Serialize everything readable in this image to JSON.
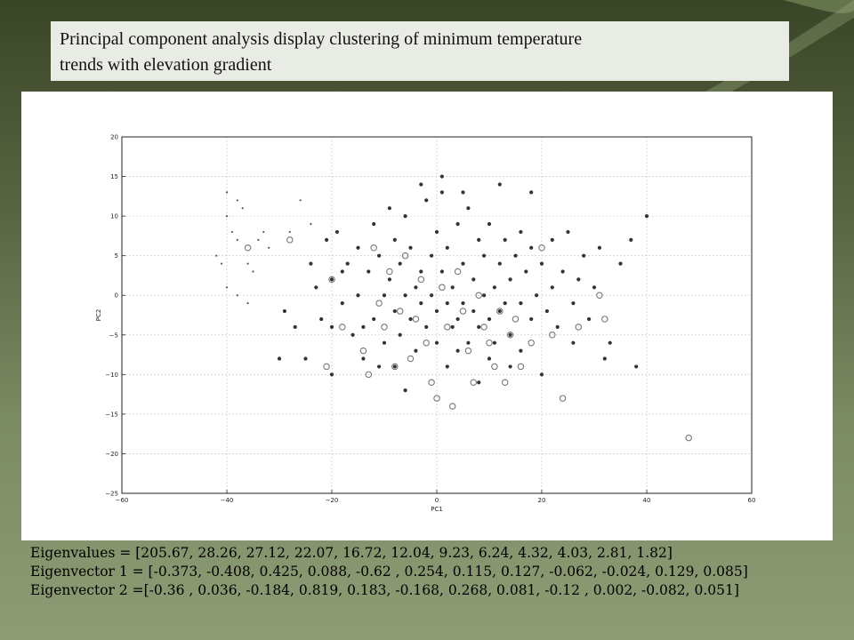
{
  "slide": {
    "title_line1": "Principal component analysis display clustering of minimum temperature",
    "title_line2": "trends with elevation gradient",
    "eigenvalues": "Eigenvalues = [205.67, 28.26, 27.12,  22.07, 16.72, 12.04, 9.23, 6.24, 4.32, 4.03, 2.81, 1.82]",
    "eigenvector1": "Eigenvector 1 = [-0.373, -0.408,  0.425,  0.088, -0.62 ,  0.254,  0.115,  0.127, -0.062, -0.024,  0.129,  0.085]",
    "eigenvector2": "Eigenvector 2 =[-0.36 ,  0.036, -0.184,  0.819,  0.183, -0.168,  0.268,  0.081, -0.12 , 0.002, -0.082,  0.051]"
  },
  "colors": {
    "background_dark": "#3a4527",
    "background_light": "#8d9c74",
    "title_box": "#e9ebe5",
    "point_fill": "#333333",
    "open_marker": "#777777"
  },
  "chart_data": {
    "type": "scatter",
    "xlabel": "PC1",
    "ylabel": "PC2",
    "xlim": [
      -60,
      60
    ],
    "ylim": [
      -25,
      20
    ],
    "xticks": [
      "−60",
      "−40",
      "−20",
      "0",
      "20",
      "40",
      "60"
    ],
    "yticks": [
      "−25",
      "−20",
      "−15",
      "−10",
      "−5",
      "0",
      "5",
      "10",
      "15",
      "20"
    ],
    "grid": true,
    "series": [
      {
        "marker": "small-dot",
        "points": [
          [
            -42,
            5
          ],
          [
            -41,
            4
          ],
          [
            -40,
            13
          ],
          [
            -40,
            10
          ],
          [
            -39,
            8
          ],
          [
            -38,
            12
          ],
          [
            -38,
            7
          ],
          [
            -37,
            11
          ],
          [
            -36,
            4
          ],
          [
            -35,
            3
          ],
          [
            -34,
            7
          ],
          [
            -33,
            8
          ],
          [
            -32,
            6
          ],
          [
            -29,
            -2
          ],
          [
            -40,
            1
          ],
          [
            -38,
            0
          ],
          [
            -36,
            -1
          ],
          [
            -28,
            8
          ],
          [
            -26,
            12
          ],
          [
            -24,
            9
          ]
        ]
      },
      {
        "marker": "filled-dot",
        "points": [
          [
            -30,
            -8
          ],
          [
            -29,
            -2
          ],
          [
            -25,
            -8
          ],
          [
            -24,
            4
          ],
          [
            -23,
            1
          ],
          [
            -22,
            -3
          ],
          [
            -21,
            7
          ],
          [
            -20,
            2
          ],
          [
            -20,
            -4
          ],
          [
            -19,
            8
          ],
          [
            -18,
            -1
          ],
          [
            -17,
            4
          ],
          [
            -16,
            -5
          ],
          [
            -15,
            6
          ],
          [
            -15,
            0
          ],
          [
            -14,
            -8
          ],
          [
            -13,
            3
          ],
          [
            -12,
            9
          ],
          [
            -12,
            -3
          ],
          [
            -11,
            5
          ],
          [
            -10,
            0
          ],
          [
            -10,
            -6
          ],
          [
            -9,
            11
          ],
          [
            -9,
            2
          ],
          [
            -8,
            -2
          ],
          [
            -8,
            7
          ],
          [
            -7,
            -5
          ],
          [
            -7,
            4
          ],
          [
            -6,
            0
          ],
          [
            -6,
            10
          ],
          [
            -5,
            -3
          ],
          [
            -5,
            6
          ],
          [
            -4,
            1
          ],
          [
            -4,
            -7
          ],
          [
            -3,
            3
          ],
          [
            -3,
            -1
          ],
          [
            -2,
            12
          ],
          [
            -2,
            -4
          ],
          [
            -1,
            5
          ],
          [
            -1,
            0
          ],
          [
            0,
            8
          ],
          [
            0,
            -2
          ],
          [
            0,
            -6
          ],
          [
            1,
            3
          ],
          [
            1,
            13
          ],
          [
            2,
            -1
          ],
          [
            2,
            6
          ],
          [
            3,
            -4
          ],
          [
            3,
            1
          ],
          [
            4,
            9
          ],
          [
            4,
            -3
          ],
          [
            5,
            4
          ],
          [
            5,
            -1
          ],
          [
            6,
            11
          ],
          [
            6,
            -6
          ],
          [
            7,
            2
          ],
          [
            7,
            -2
          ],
          [
            8,
            7
          ],
          [
            8,
            -4
          ],
          [
            9,
            0
          ],
          [
            9,
            5
          ],
          [
            10,
            -3
          ],
          [
            10,
            9
          ],
          [
            11,
            1
          ],
          [
            11,
            -6
          ],
          [
            12,
            4
          ],
          [
            12,
            -2
          ],
          [
            13,
            7
          ],
          [
            13,
            -1
          ],
          [
            14,
            2
          ],
          [
            14,
            -5
          ],
          [
            15,
            5
          ],
          [
            16,
            -1
          ],
          [
            16,
            8
          ],
          [
            17,
            3
          ],
          [
            18,
            -3
          ],
          [
            18,
            6
          ],
          [
            19,
            0
          ],
          [
            20,
            4
          ],
          [
            21,
            -2
          ],
          [
            22,
            7
          ],
          [
            22,
            1
          ],
          [
            23,
            -4
          ],
          [
            24,
            3
          ],
          [
            25,
            8
          ],
          [
            26,
            -1
          ],
          [
            27,
            2
          ],
          [
            28,
            5
          ],
          [
            29,
            -3
          ],
          [
            30,
            1
          ],
          [
            31,
            6
          ],
          [
            33,
            -6
          ],
          [
            35,
            4
          ],
          [
            37,
            7
          ],
          [
            38,
            -9
          ],
          [
            40,
            10
          ],
          [
            -20,
            -10
          ],
          [
            -6,
            -12
          ],
          [
            2,
            -9
          ],
          [
            8,
            -11
          ],
          [
            14,
            -9
          ],
          [
            20,
            -10
          ],
          [
            -27,
            -4
          ],
          [
            -18,
            3
          ],
          [
            -11,
            -9
          ],
          [
            -3,
            14
          ],
          [
            1,
            15
          ],
          [
            5,
            13
          ],
          [
            12,
            14
          ],
          [
            18,
            13
          ],
          [
            -14,
            -4
          ],
          [
            -8,
            -9
          ],
          [
            4,
            -7
          ],
          [
            10,
            -8
          ],
          [
            16,
            -7
          ],
          [
            26,
            -6
          ],
          [
            32,
            -8
          ]
        ]
      },
      {
        "marker": "open-circle",
        "points": [
          [
            -28,
            7
          ],
          [
            -36,
            6
          ],
          [
            -21,
            -9
          ],
          [
            -20,
            2
          ],
          [
            -18,
            -4
          ],
          [
            -14,
            -7
          ],
          [
            -13,
            -10
          ],
          [
            -12,
            6
          ],
          [
            -11,
            -1
          ],
          [
            -10,
            -4
          ],
          [
            -9,
            3
          ],
          [
            -8,
            -9
          ],
          [
            -7,
            -2
          ],
          [
            -6,
            5
          ],
          [
            -5,
            -8
          ],
          [
            -4,
            -3
          ],
          [
            -3,
            2
          ],
          [
            -2,
            -6
          ],
          [
            -1,
            -11
          ],
          [
            0,
            -13
          ],
          [
            1,
            1
          ],
          [
            2,
            -4
          ],
          [
            3,
            -14
          ],
          [
            4,
            3
          ],
          [
            5,
            -2
          ],
          [
            6,
            -7
          ],
          [
            7,
            -11
          ],
          [
            8,
            0
          ],
          [
            9,
            -4
          ],
          [
            10,
            -6
          ],
          [
            11,
            -9
          ],
          [
            12,
            -2
          ],
          [
            13,
            -11
          ],
          [
            14,
            -5
          ],
          [
            15,
            -3
          ],
          [
            16,
            -9
          ],
          [
            18,
            -6
          ],
          [
            20,
            6
          ],
          [
            22,
            -5
          ],
          [
            24,
            -13
          ],
          [
            27,
            -4
          ],
          [
            31,
            0
          ],
          [
            32,
            -3
          ],
          [
            48,
            -18
          ]
        ]
      }
    ]
  }
}
